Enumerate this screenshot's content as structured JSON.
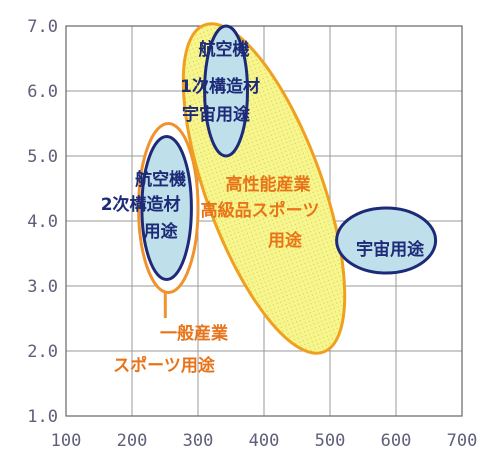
{
  "chart_data": {
    "type": "scatter",
    "title": "",
    "xlabel": "",
    "ylabel": "",
    "xlim": [
      100,
      700
    ],
    "ylim": [
      1.0,
      7.0
    ],
    "x_ticks": [
      "100",
      "200",
      "300",
      "400",
      "500",
      "600",
      "700"
    ],
    "y_ticks": [
      "1.0",
      "2.0",
      "3.0",
      "4.0",
      "5.0",
      "6.0",
      "7.0"
    ],
    "grid": true,
    "regions": [
      {
        "name": "一般産業・スポーツ用途",
        "label_lines": [
          "一般産業",
          "スポーツ用途"
        ],
        "x_range": [
          210,
          300
        ],
        "y_range": [
          2.9,
          5.5
        ],
        "fill": "#ffffff",
        "stroke": "#f0922e"
      },
      {
        "name": "航空機2次構造材用途",
        "label_lines": [
          "航空機",
          "2次構造材",
          "用途"
        ],
        "x_range": [
          215,
          290
        ],
        "y_range": [
          3.1,
          5.3
        ],
        "fill": "#bfe0ea",
        "stroke": "#1c2a78"
      },
      {
        "name": "高性能産業・高級品スポーツ用途",
        "label_lines": [
          "高性能産業",
          "高級品スポーツ",
          "用途"
        ],
        "x_range": [
          300,
          500
        ],
        "y_range": [
          2.0,
          7.0
        ],
        "fill": "#f7f58e",
        "stroke": "#f0a020"
      },
      {
        "name": "航空機1次構造材宇宙用途",
        "label_lines": [
          "航空機",
          "1次構造材",
          "宇宙用途"
        ],
        "x_range": [
          310,
          375
        ],
        "y_range": [
          5.0,
          7.0
        ],
        "fill": "#bfe0ea",
        "stroke": "#1c2a78"
      },
      {
        "name": "宇宙用途",
        "label_lines": [
          "宇宙用途"
        ],
        "x_range": [
          510,
          660
        ],
        "y_range": [
          3.2,
          4.2
        ],
        "fill": "#bfe0ea",
        "stroke": "#1c2a78"
      }
    ]
  }
}
